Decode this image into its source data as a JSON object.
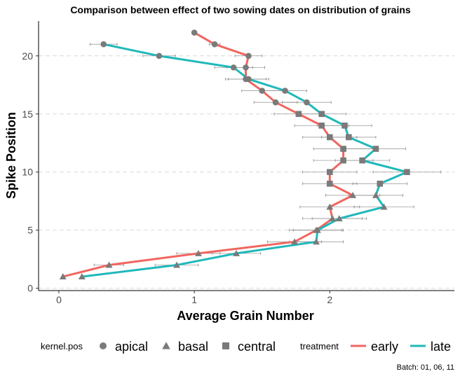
{
  "chart_data": {
    "type": "line",
    "title": "Comparison between effect of two sowing dates on distribution of grains",
    "xlabel": "Average Grain Number",
    "ylabel": "Spike Position",
    "xlim": [
      -0.15,
      2.92
    ],
    "ylim": [
      -0.2,
      23.0
    ],
    "x_ticks": [
      0,
      1,
      2
    ],
    "y_ticks": [
      0,
      5,
      10,
      15,
      20
    ],
    "grid": "dashed horizontal major",
    "legend_position": "bottom",
    "legend_groups": [
      {
        "title": "kernel.pos",
        "items": [
          {
            "label": "apical",
            "shape": "circle"
          },
          {
            "label": "basal",
            "shape": "triangle"
          },
          {
            "label": "central",
            "shape": "square"
          }
        ]
      },
      {
        "title": "treatment",
        "items": [
          {
            "label": "early",
            "color": "#F1665F"
          },
          {
            "label": "late",
            "color": "#1FB8BA"
          }
        ]
      }
    ],
    "caption": "Batch: 01, 06, 11",
    "series": [
      {
        "name": "early",
        "color": "#F1665F",
        "points": [
          {
            "y": 1,
            "x": 0.03,
            "err": 0.0,
            "shape": "triangle"
          },
          {
            "y": 2,
            "x": 0.37,
            "err": 0.11,
            "shape": "triangle"
          },
          {
            "y": 3,
            "x": 1.03,
            "err": 0.16,
            "shape": "triangle"
          },
          {
            "y": 4,
            "x": 1.74,
            "err": 0.2,
            "shape": "triangle"
          },
          {
            "y": 5,
            "x": 1.9,
            "err": 0.2,
            "shape": "triangle"
          },
          {
            "y": 6,
            "x": 2.02,
            "err": 0.22,
            "shape": "triangle"
          },
          {
            "y": 7,
            "x": 2.0,
            "err": 0.22,
            "shape": "triangle"
          },
          {
            "y": 8,
            "x": 2.17,
            "err": 0.2,
            "shape": "triangle"
          },
          {
            "y": 9,
            "x": 2.0,
            "err": 0.2,
            "shape": "square"
          },
          {
            "y": 10,
            "x": 2.0,
            "err": 0.2,
            "shape": "square"
          },
          {
            "y": 11,
            "x": 2.1,
            "err": 0.22,
            "shape": "square"
          },
          {
            "y": 12,
            "x": 2.1,
            "err": 0.22,
            "shape": "square"
          },
          {
            "y": 13,
            "x": 2.0,
            "err": 0.2,
            "shape": "square"
          },
          {
            "y": 14,
            "x": 1.94,
            "err": 0.2,
            "shape": "square"
          },
          {
            "y": 15,
            "x": 1.77,
            "err": 0.18,
            "shape": "square"
          },
          {
            "y": 16,
            "x": 1.6,
            "err": 0.16,
            "shape": "circle"
          },
          {
            "y": 17,
            "x": 1.5,
            "err": 0.15,
            "shape": "circle"
          },
          {
            "y": 18,
            "x": 1.38,
            "err": 0.15,
            "shape": "circle"
          },
          {
            "y": 19,
            "x": 1.38,
            "err": 0.14,
            "shape": "circle"
          },
          {
            "y": 20,
            "x": 1.4,
            "err": 0.1,
            "shape": "circle"
          },
          {
            "y": 21,
            "x": 1.15,
            "err": 0.04,
            "shape": "circle"
          },
          {
            "y": 22,
            "x": 1.0,
            "err": 0.0,
            "shape": "circle"
          }
        ]
      },
      {
        "name": "late",
        "color": "#1FB8BA",
        "points": [
          {
            "y": 1,
            "x": 0.17,
            "err": 0.0,
            "shape": "triangle"
          },
          {
            "y": 2,
            "x": 0.87,
            "err": 0.16,
            "shape": "triangle"
          },
          {
            "y": 3,
            "x": 1.31,
            "err": 0.18,
            "shape": "triangle"
          },
          {
            "y": 4,
            "x": 1.9,
            "err": 0.2,
            "shape": "triangle"
          },
          {
            "y": 5,
            "x": 1.91,
            "err": 0.18,
            "shape": "triangle"
          },
          {
            "y": 6,
            "x": 2.07,
            "err": 0.2,
            "shape": "triangle"
          },
          {
            "y": 7,
            "x": 2.4,
            "err": 0.22,
            "shape": "triangle"
          },
          {
            "y": 8,
            "x": 2.34,
            "err": 0.2,
            "shape": "triangle"
          },
          {
            "y": 9,
            "x": 2.37,
            "err": 0.2,
            "shape": "square"
          },
          {
            "y": 10,
            "x": 2.57,
            "err": 0.25,
            "shape": "square"
          },
          {
            "y": 11,
            "x": 2.24,
            "err": 0.2,
            "shape": "square"
          },
          {
            "y": 12,
            "x": 2.34,
            "err": 0.22,
            "shape": "square"
          },
          {
            "y": 13,
            "x": 2.14,
            "err": 0.2,
            "shape": "square"
          },
          {
            "y": 14,
            "x": 2.11,
            "err": 0.2,
            "shape": "square"
          },
          {
            "y": 15,
            "x": 1.94,
            "err": 0.18,
            "shape": "square"
          },
          {
            "y": 16,
            "x": 1.83,
            "err": 0.18,
            "shape": "circle"
          },
          {
            "y": 17,
            "x": 1.67,
            "err": 0.16,
            "shape": "circle"
          },
          {
            "y": 18,
            "x": 1.4,
            "err": 0.15,
            "shape": "circle"
          },
          {
            "y": 19,
            "x": 1.29,
            "err": 0.14,
            "shape": "circle"
          },
          {
            "y": 20,
            "x": 0.74,
            "err": 0.12,
            "shape": "circle"
          },
          {
            "y": 21,
            "x": 0.33,
            "err": 0.1,
            "shape": "circle"
          }
        ]
      }
    ]
  }
}
